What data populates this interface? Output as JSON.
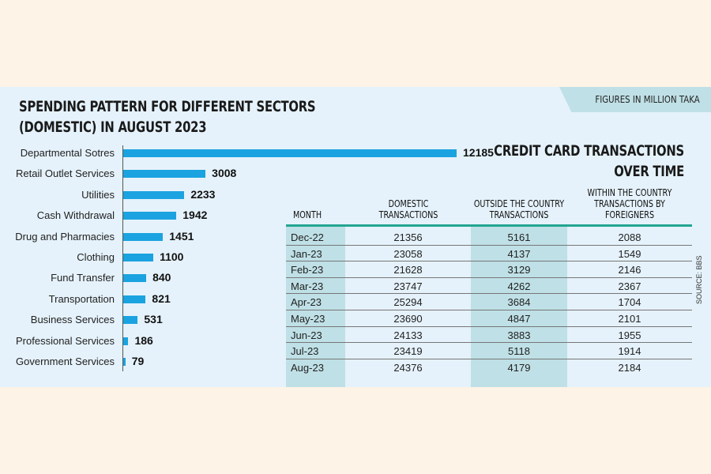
{
  "note": "FIGURES IN MILLION TAKA",
  "source": "SOURCE: BBS",
  "chart_data": {
    "type": "bar",
    "orientation": "horizontal",
    "title": "SPENDING PATTERN FOR DIFFERENT SECTORS (DOMESTIC) IN AUGUST 2023",
    "categories": [
      "Departmental Sotres",
      "Retail Outlet Services",
      "Utilities",
      "Cash Withdrawal",
      "Drug and Pharmacies",
      "Clothing",
      "Fund Transfer",
      "Transportation",
      "Business Services",
      "Professional Services",
      "Government Services"
    ],
    "values": [
      12185,
      3008,
      2233,
      1942,
      1451,
      1100,
      840,
      821,
      531,
      186,
      79
    ],
    "color": "#1aa3e0"
  },
  "table": {
    "title": "CREDIT CARD TRANSACTIONS OVER TIME",
    "headers": [
      "MONTH",
      "DOMESTIC TRANSACTIONS",
      "OUTSIDE THE COUNTRY TRANSACTIONS",
      "WITHIN THE COUNTRY TRANSACTIONS BY FOREIGNERS"
    ],
    "rows": [
      [
        "Dec-22",
        "21356",
        "5161",
        "2088"
      ],
      [
        "Jan-23",
        "23058",
        "4137",
        "1549"
      ],
      [
        "Feb-23",
        "21628",
        "3129",
        "2146"
      ],
      [
        "Mar-23",
        "23747",
        "4262",
        "2367"
      ],
      [
        "Apr-23",
        "25294",
        "3684",
        "1704"
      ],
      [
        "May-23",
        "23690",
        "4847",
        "2101"
      ],
      [
        "Jun-23",
        "24133",
        "3883",
        "1955"
      ],
      [
        "Jul-23",
        "23419",
        "5118",
        "1914"
      ],
      [
        "Aug-23",
        "24376",
        "4179",
        "2184"
      ]
    ]
  }
}
